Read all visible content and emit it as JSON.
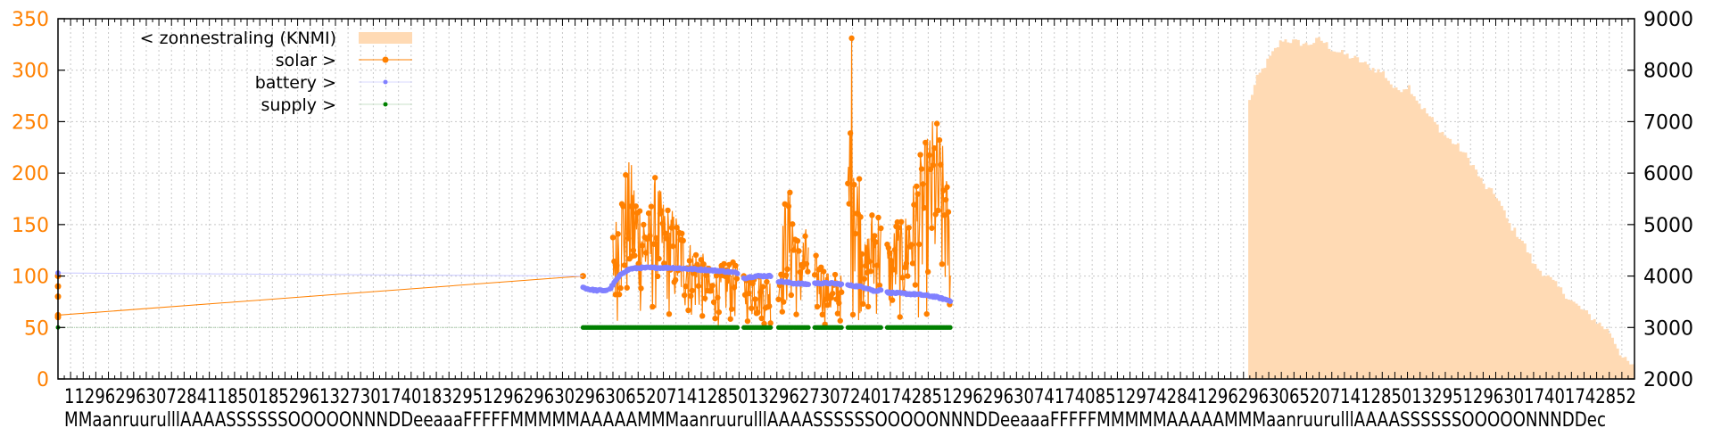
{
  "chart_data": {
    "type": "line",
    "grid": true,
    "legend_position": "top-left",
    "y_left": {
      "range": [
        0,
        350
      ],
      "ticks": [
        0,
        50,
        100,
        150,
        200,
        250,
        300,
        350
      ]
    },
    "y_right": {
      "range": [
        2000,
        9000
      ],
      "ticks": [
        2000,
        3000,
        4000,
        5000,
        6000,
        7000,
        8000,
        9000
      ]
    },
    "x_tick_labels": {
      "upper": "1129629630728411850185296132730174018329512962963029630652071412850132962730724017428512962963074174085129742841296296306520714128501329512963017401742852",
      "lower": "MMaanruurulllAAAASSSSSSOOOOONNNDDeeaaaFFFFFMMMMMAAAAAMMMaanruurulllAAAASSSSSSOOOOONNNDDeeaaaFFFFFMMMMMAAAAAMMMaanruurulllAAAASSSSSSOOOOONNNDDec"
    },
    "series": [
      {
        "name": "< zonnestraling (KNMI)",
        "axis": "right",
        "style": "filled-steps",
        "color": "#ffdab4",
        "x_range": [
          0.755,
          1.0
        ],
        "points": [
          [
            0.755,
            7400
          ],
          [
            0.76,
            7850
          ],
          [
            0.768,
            8250
          ],
          [
            0.776,
            8600
          ],
          [
            0.784,
            8550
          ],
          [
            0.792,
            8500
          ],
          [
            0.8,
            8600
          ],
          [
            0.808,
            8400
          ],
          [
            0.816,
            8300
          ],
          [
            0.824,
            8200
          ],
          [
            0.832,
            8050
          ],
          [
            0.84,
            7950
          ],
          [
            0.848,
            7600
          ],
          [
            0.856,
            7700
          ],
          [
            0.864,
            7300
          ],
          [
            0.872,
            7000
          ],
          [
            0.88,
            6700
          ],
          [
            0.888,
            6500
          ],
          [
            0.896,
            6200
          ],
          [
            0.904,
            5750
          ],
          [
            0.912,
            5550
          ],
          [
            0.92,
            5000
          ],
          [
            0.928,
            4700
          ],
          [
            0.936,
            4200
          ],
          [
            0.944,
            4000
          ],
          [
            0.952,
            3750
          ],
          [
            0.96,
            3500
          ],
          [
            0.968,
            3300
          ],
          [
            0.976,
            3100
          ],
          [
            0.984,
            2900
          ],
          [
            0.992,
            2400
          ],
          [
            1.0,
            2200
          ]
        ]
      },
      {
        "name": "solar >",
        "axis": "left",
        "style": "line-points",
        "color": "#ff8000",
        "baseline_points": [
          [
            0.0,
            60
          ],
          [
            0.0,
            80
          ],
          [
            0.0,
            100
          ],
          [
            0.0,
            90
          ],
          [
            0.0,
            62
          ],
          [
            0.333,
            100
          ]
        ],
        "envelope": [
          [
            0.353,
            150
          ],
          [
            0.356,
            180
          ],
          [
            0.36,
            205
          ],
          [
            0.363,
            215
          ],
          [
            0.367,
            190
          ],
          [
            0.371,
            175
          ],
          [
            0.375,
            165
          ],
          [
            0.379,
            200
          ],
          [
            0.383,
            180
          ],
          [
            0.387,
            170
          ],
          [
            0.391,
            165
          ],
          [
            0.395,
            155
          ],
          [
            0.399,
            140
          ],
          [
            0.403,
            130
          ],
          [
            0.407,
            130
          ],
          [
            0.415,
            100
          ],
          [
            0.42,
            110
          ],
          [
            0.425,
            115
          ],
          [
            0.432,
            112
          ],
          [
            0.437,
            105
          ],
          [
            0.442,
            110
          ],
          [
            0.447,
            100
          ],
          [
            0.452,
            100
          ],
          [
            0.457,
            110
          ],
          [
            0.462,
            190
          ],
          [
            0.466,
            180
          ],
          [
            0.47,
            130
          ],
          [
            0.474,
            150
          ],
          [
            0.478,
            125
          ],
          [
            0.482,
            120
          ],
          [
            0.486,
            110
          ],
          [
            0.49,
            100
          ],
          [
            0.494,
            105
          ],
          [
            0.498,
            100
          ],
          [
            0.5,
            170
          ],
          [
            0.502,
            250
          ],
          [
            0.503,
            350
          ],
          [
            0.504,
            330
          ],
          [
            0.505,
            300
          ],
          [
            0.506,
            200
          ],
          [
            0.508,
            215
          ],
          [
            0.51,
            180
          ],
          [
            0.512,
            130
          ],
          [
            0.516,
            165
          ],
          [
            0.52,
            170
          ],
          [
            0.524,
            150
          ],
          [
            0.528,
            130
          ],
          [
            0.532,
            160
          ],
          [
            0.536,
            150
          ],
          [
            0.54,
            180
          ],
          [
            0.544,
            200
          ],
          [
            0.548,
            225
          ],
          [
            0.552,
            240
          ],
          [
            0.556,
            262
          ],
          [
            0.56,
            240
          ],
          [
            0.563,
            210
          ],
          [
            0.566,
            160
          ]
        ],
        "segments": [
          [
            0.352,
            0.431
          ],
          [
            0.435,
            0.452
          ],
          [
            0.457,
            0.476
          ],
          [
            0.48,
            0.497
          ],
          [
            0.501,
            0.522
          ],
          [
            0.526,
            0.566
          ]
        ],
        "min_value": 50
      },
      {
        "name": "battery >",
        "axis": "left",
        "style": "points",
        "color": "#8080ff",
        "baseline_points": [
          [
            0.0,
            103
          ],
          [
            0.333,
            100
          ]
        ],
        "profile": [
          [
            0.333,
            89
          ],
          [
            0.337,
            87
          ],
          [
            0.342,
            86
          ],
          [
            0.347,
            86
          ],
          [
            0.35,
            87
          ],
          [
            0.354,
            96
          ],
          [
            0.358,
            103
          ],
          [
            0.363,
            107
          ],
          [
            0.37,
            108
          ],
          [
            0.38,
            108
          ],
          [
            0.39,
            108
          ],
          [
            0.4,
            107
          ],
          [
            0.41,
            106
          ],
          [
            0.42,
            105
          ],
          [
            0.431,
            103
          ],
          [
            0.435,
            98
          ],
          [
            0.443,
            100
          ],
          [
            0.452,
            100
          ],
          [
            0.457,
            95
          ],
          [
            0.466,
            93
          ],
          [
            0.476,
            92
          ],
          [
            0.48,
            93
          ],
          [
            0.49,
            93
          ],
          [
            0.497,
            92
          ],
          [
            0.501,
            91
          ],
          [
            0.508,
            90
          ],
          [
            0.514,
            88
          ],
          [
            0.518,
            85
          ],
          [
            0.522,
            87
          ],
          [
            0.526,
            84
          ],
          [
            0.536,
            83
          ],
          [
            0.546,
            82
          ],
          [
            0.556,
            80
          ],
          [
            0.566,
            76
          ]
        ],
        "segments": [
          [
            0.333,
            0.348
          ],
          [
            0.35,
            0.431
          ],
          [
            0.435,
            0.452
          ],
          [
            0.457,
            0.476
          ],
          [
            0.48,
            0.497
          ],
          [
            0.501,
            0.522
          ],
          [
            0.526,
            0.566
          ]
        ]
      },
      {
        "name": "supply >",
        "axis": "left",
        "style": "points",
        "color": "#008000",
        "baseline_points": [
          [
            0.0,
            50
          ],
          [
            0.333,
            50
          ]
        ],
        "value": 50,
        "segments": [
          [
            0.333,
            0.431
          ],
          [
            0.435,
            0.452
          ],
          [
            0.457,
            0.476
          ],
          [
            0.48,
            0.497
          ],
          [
            0.501,
            0.522
          ],
          [
            0.526,
            0.566
          ]
        ]
      }
    ]
  }
}
